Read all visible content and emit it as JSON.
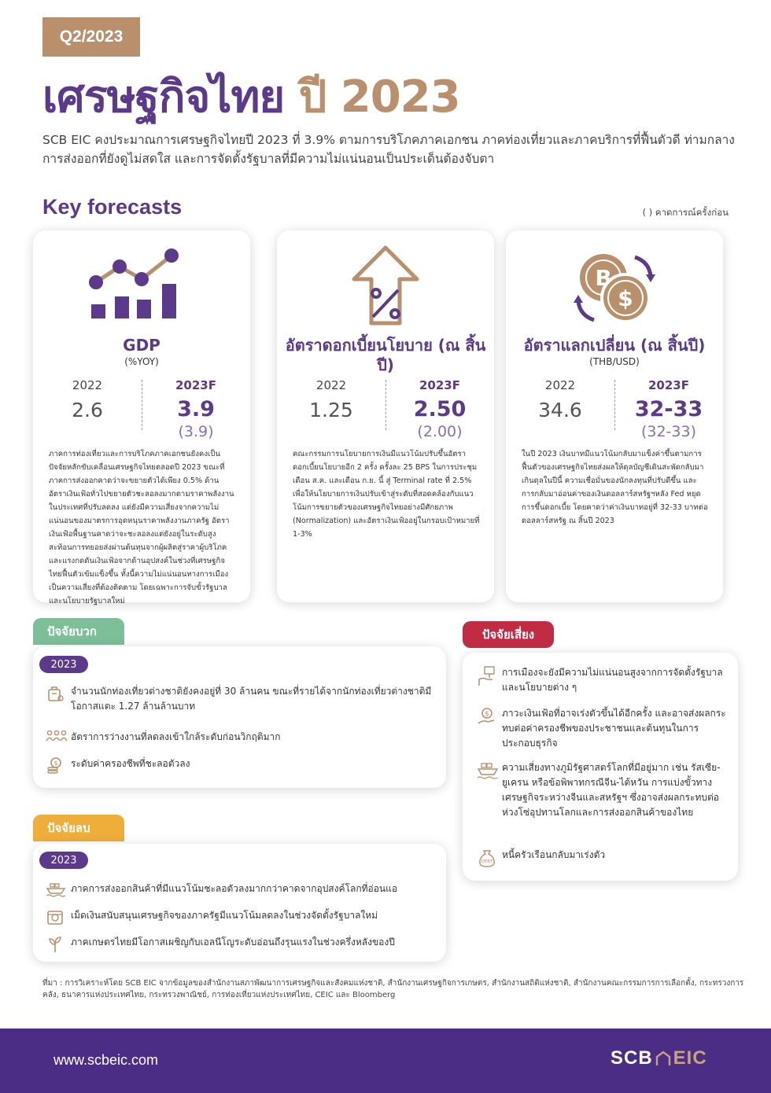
{
  "header": {
    "quarter": "Q2/2023",
    "title_part1": "เศรษฐกิจไทย",
    "title_part2": "ปี 2023",
    "intro": "SCB EIC คงประมาณการเศรษฐกิจไทยปี 2023 ที่ 3.9% ตามการบริโภคภาคเอกชน ภาคท่องเที่ยวและภาคบริการที่ฟื้นตัวดี ท่ามกลางการส่งออกที่ยังดูไม่สดใส และการจัดตั้งรัฐบาลที่มีความไม่แน่นอนเป็นประเด็นต้องจับตา"
  },
  "key_forecasts": {
    "title": "Key forecasts",
    "note": "( ) คาดการณ์ครั้งก่อน",
    "cards": [
      {
        "icon": "gdp-chart-icon",
        "title": "GDP",
        "unit": "(%YOY)",
        "year_prev": "2022",
        "value_prev": "2.6",
        "year_fc": "2023F",
        "value_fc": "3.9",
        "value_prev_fc": "(3.9)",
        "description": "ภาคการท่องเที่ยวและการบริโภคภาคเอกชนยังคงเป็นปัจจัยหลักขับเคลื่อนเศรษฐกิจไทยตลอดปี 2023 ขณะที่ภาคการส่งออกคาดว่าจะขยายตัวได้เพียง 0.5% ด้านอัตราเงินเฟ้อทั่วไปขยายตัวชะลอลงมากตามราคาพลังงานในประเทศที่ปรับลดลง แต่ยังมีความเสี่ยงจากความไม่แน่นอนของมาตรการอุดหนุนราคาพลังงานภาครัฐ อัตราเงินเฟ้อพื้นฐานคาดว่าจะชะลอลงแต่ยังอยู่ในระดับสูง สะท้อนการทยอยส่งผ่านต้นทุนจากผู้ผลิตสู่ราคาผู้บริโภคและแรงกดดันเงินเฟ้อจากด้านอุปสงค์ในช่วงที่เศรษฐกิจไทยฟื้นตัวเข้มแข็งขึ้น ทั้งนี้ความไม่แน่นอนทางการเมืองเป็นความเสี่ยงที่ต้องติดตาม โดยเฉพาะการจับขั้วรัฐบาลและนโยบายรัฐบาลใหม่"
      },
      {
        "icon": "interest-rate-icon",
        "title": "อัตราดอกเบี้ยนโยบาย (ณ สิ้นปี)",
        "unit": "",
        "year_prev": "2022",
        "value_prev": "1.25",
        "year_fc": "2023F",
        "value_fc": "2.50",
        "value_prev_fc": "(2.00)",
        "description": "คณะกรรมการนโยบายการเงินมีแนวโน้มปรับขึ้นอัตราดอกเบี้ยนโยบายอีก 2 ครั้ง ครั้งละ 25 BPS ในการประชุมเดือน ส.ค. และเดือน ก.ย. นี้ สู่ Terminal rate ที่ 2.5% เพื่อให้นโยบายการเงินปรับเข้าสู่ระดับที่สอดคล้องกับแนวโน้มการขยายตัวของเศรษฐกิจไทยอย่างมีศักยภาพ (Normalization) และอัตราเงินเฟ้ออยู่ในกรอบเป้าหมายที่ 1-3%"
      },
      {
        "icon": "exchange-rate-icon",
        "title": "อัตราแลกเปลี่ยน (ณ สิ้นปี)",
        "unit": "(THB/USD)",
        "year_prev": "2022",
        "value_prev": "34.6",
        "year_fc": "2023F",
        "value_fc": "32-33",
        "value_prev_fc": "(32-33)",
        "description": "ในปี 2023 เงินบาทมีแนวโน้มกลับมาแข็งค่าขึ้นตามการฟื้นตัวของเศรษฐกิจไทยส่งผลให้ดุลบัญชีเดินสะพัดกลับมาเกินดุลในปีนี้ ความเชื่อมั่นของนักลงทุนที่ปรับดีขึ้น และการกลับมาอ่อนค่าของเงินดอลลาร์สหรัฐฯหลัง Fed หยุดการขึ้นดอกเบี้ย โดยคาดว่าค่าเงินบาทอยู่ที่ 32-33 บาทต่อดอลลาร์สหรัฐ ณ สิ้นปี 2023"
      }
    ]
  },
  "positive": {
    "tab": "ปัจจัยบวก",
    "year": "2023",
    "items": [
      "จำนวนนักท่องเที่ยวต่างชาติยังคงอยู่ที่ 30 ล้านคน ขณะที่รายได้จากนักท่องเที่ยวต่างชาติมีโอกาสแตะ 1.27 ล้านล้านบาท",
      "อัตราการว่างงานที่ลดลงเข้าใกล้ระดับก่อนวิกฤติมาก",
      "ระดับค่าครองชีพที่ชะลอตัวลง"
    ]
  },
  "negative": {
    "tab": "ปัจจัยลบ",
    "year": "2023",
    "items": [
      "ภาคการส่งออกสินค้าที่มีแนวโน้มชะลอตัวลงมากกว่าคาดจากอุปสงค์โลกที่อ่อนแอ",
      "เม็ดเงินสนับสนุนเศรษฐกิจของภาครัฐมีแนวโน้มลดลงในช่วงจัดตั้งรัฐบาลใหม่",
      "ภาคเกษตรไทยมีโอกาสเผชิญกับเอลนีโญระดับอ่อนถึงรุนแรงในช่วงครึ่งหลังของปี"
    ]
  },
  "risk": {
    "tab": "ปัจจัยเสี่ยง",
    "items": [
      "การเมืองจะยังมีความไม่แน่นอนสูงจากการจัดตั้งรัฐบาลและนโยบายต่าง ๆ",
      "ภาวะเงินเฟ้อที่อาจเร่งตัวขึ้นได้อีกครั้ง และอาจส่งผลกระทบต่อค่าครองชีพของประชาชนและต้นทุนในการประกอบธุรกิจ",
      "ความเสี่ยงทางภูมิรัฐศาสตร์โลกที่มีอยู่มาก เช่น รัสเซีย-ยูเครน หรือข้อพิพาทกรณีจีน-ไต้หวัน การแบ่งขั้วทางเศรษฐกิจระหว่างจีนและสหรัฐฯ ซึ่งอาจส่งผลกระทบต่อห่วงโซ่อุปทานโลกและการส่งออกสินค้าของไทย",
      "หนี้ครัวเรือนกลับมาเร่งตัว"
    ]
  },
  "source": "ที่มา : การวิเคราะห์โดย SCB EIC จากข้อมูลของสำนักงานสภาพัฒนาการเศรษฐกิจและสังคมแห่งชาติ, สำนักงานเศรษฐกิจการเกษตร, สำนักงานสถิติแห่งชาติ, สำนักงานคณะกรรมการการเลือกตั้ง, กระทรวงการคลัง, ธนาคารแห่งประเทศไทย, กระทรวงพาณิชย์, การท่องเที่ยวแห่งประเทศไทย, CEIC และ Bloomberg",
  "footer": {
    "url": "www.scbeic.com",
    "logo_scb": "SCB",
    "logo_eic": "EIC"
  },
  "colors": {
    "purple": "#5b3a8c",
    "gold": "#b98f6c",
    "green": "#7cbf98",
    "orange": "#efad3a",
    "red": "#c12c44"
  }
}
